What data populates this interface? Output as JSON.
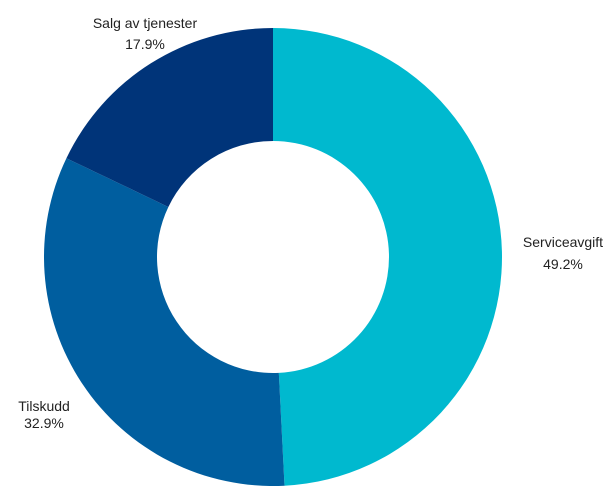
{
  "chart_data": {
    "type": "pie",
    "donut": true,
    "slices": [
      {
        "label": "Serviceavgift",
        "value": 49.2,
        "display": "49.2%",
        "color": "#00b9cf"
      },
      {
        "label": "Tilskudd",
        "value": 32.9,
        "display": "32.9%",
        "color": "#005e9f"
      },
      {
        "label": "Salg av tjenester",
        "value": 17.9,
        "display": "17.9%",
        "color": "#003479"
      }
    ]
  }
}
